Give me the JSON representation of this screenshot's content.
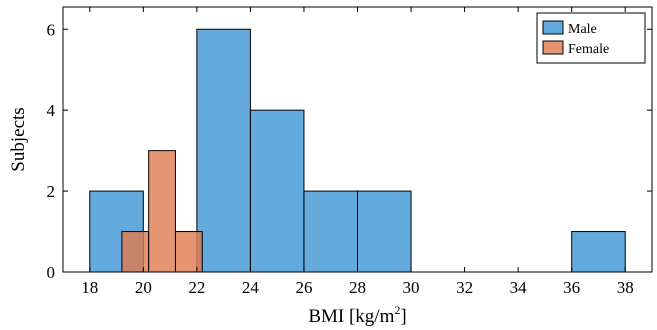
{
  "chart_data": {
    "type": "histogram",
    "xlabel": "BMI [kg/m",
    "xlabel_sup": "2",
    "xlabel_end": "]",
    "ylabel": "Subjects",
    "xlim": [
      17,
      39
    ],
    "ylim": [
      0,
      6.55
    ],
    "xticks": [
      18,
      20,
      22,
      24,
      26,
      28,
      30,
      32,
      34,
      36,
      38
    ],
    "yticks": [
      0,
      2,
      4,
      6
    ],
    "legend_position": "top-right",
    "series": [
      {
        "name": "Male",
        "color": "#4a9bd6",
        "opacity": 0.85,
        "bins": [
          {
            "x0": 18,
            "x1": 20,
            "count": 2
          },
          {
            "x0": 22,
            "x1": 24,
            "count": 6
          },
          {
            "x0": 24,
            "x1": 26,
            "count": 4
          },
          {
            "x0": 26,
            "x1": 28,
            "count": 2
          },
          {
            "x0": 28,
            "x1": 30,
            "count": 2
          },
          {
            "x0": 36,
            "x1": 38,
            "count": 1
          }
        ]
      },
      {
        "name": "Female",
        "color": "#e07b4f",
        "opacity": 0.8,
        "bins": [
          {
            "x0": 19.2,
            "x1": 20.2,
            "count": 1
          },
          {
            "x0": 20.2,
            "x1": 21.2,
            "count": 3
          },
          {
            "x0": 21.2,
            "x1": 22.2,
            "count": 1
          }
        ]
      }
    ]
  }
}
